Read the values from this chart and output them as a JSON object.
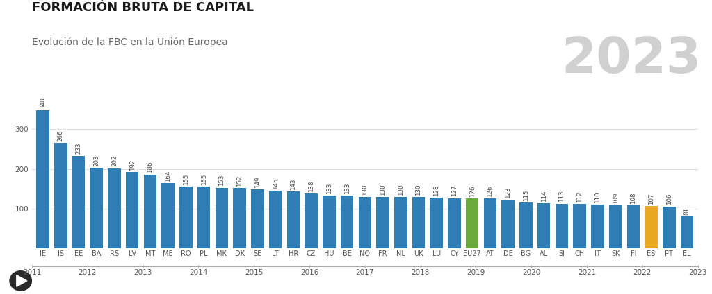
{
  "title": "FORMACIÓN BRUTA DE CAPITAL",
  "subtitle": "Evolución de la FBC en la Unión Europea",
  "year_label": "2023",
  "categories": [
    "IE",
    "IS",
    "EE",
    "BA",
    "RS",
    "LV",
    "MT",
    "ME",
    "RO",
    "PL",
    "MK",
    "DK",
    "SE",
    "LT",
    "HR",
    "CZ",
    "HU",
    "BE",
    "NO",
    "FR",
    "NL",
    "UK",
    "LU",
    "CY",
    "EU27",
    "AT",
    "DE",
    "BG",
    "AL",
    "SI",
    "CH",
    "IT",
    "SK",
    "FI",
    "ES",
    "PT",
    "EL"
  ],
  "values": [
    348,
    266,
    233,
    203,
    202,
    192,
    186,
    164,
    155,
    155,
    153,
    152,
    149,
    145,
    143,
    138,
    133,
    133,
    130,
    130,
    130,
    130,
    128,
    127,
    126,
    126,
    123,
    115,
    114,
    113,
    112,
    110,
    109,
    108,
    107,
    106,
    81
  ],
  "bar_colors_default": "#2e7db5",
  "bar_color_eu27": "#6aaa3a",
  "bar_color_es": "#e8a820",
  "eu27_index": 24,
  "es_index": 34,
  "bg_color": "#ffffff",
  "title_color": "#1a1a1a",
  "subtitle_color": "#666666",
  "year_color": "#d0d0d0",
  "value_label_color": "#444444",
  "axis_label_color": "#555555",
  "grid_color": "#e0e0e0",
  "timeline_color": "#aaaaaa",
  "ylim": [
    0,
    370
  ],
  "yticks": [
    0,
    100,
    200,
    300
  ],
  "timeline_years": [
    "2011",
    "2012",
    "2013",
    "2014",
    "2015",
    "2016",
    "2017",
    "2018",
    "2019",
    "2020",
    "2021",
    "2022",
    "2023"
  ],
  "title_fontsize": 13,
  "subtitle_fontsize": 10,
  "year_fontsize": 52,
  "bar_label_fontsize": 6.2,
  "xtick_fontsize": 7,
  "ytick_fontsize": 7.5
}
